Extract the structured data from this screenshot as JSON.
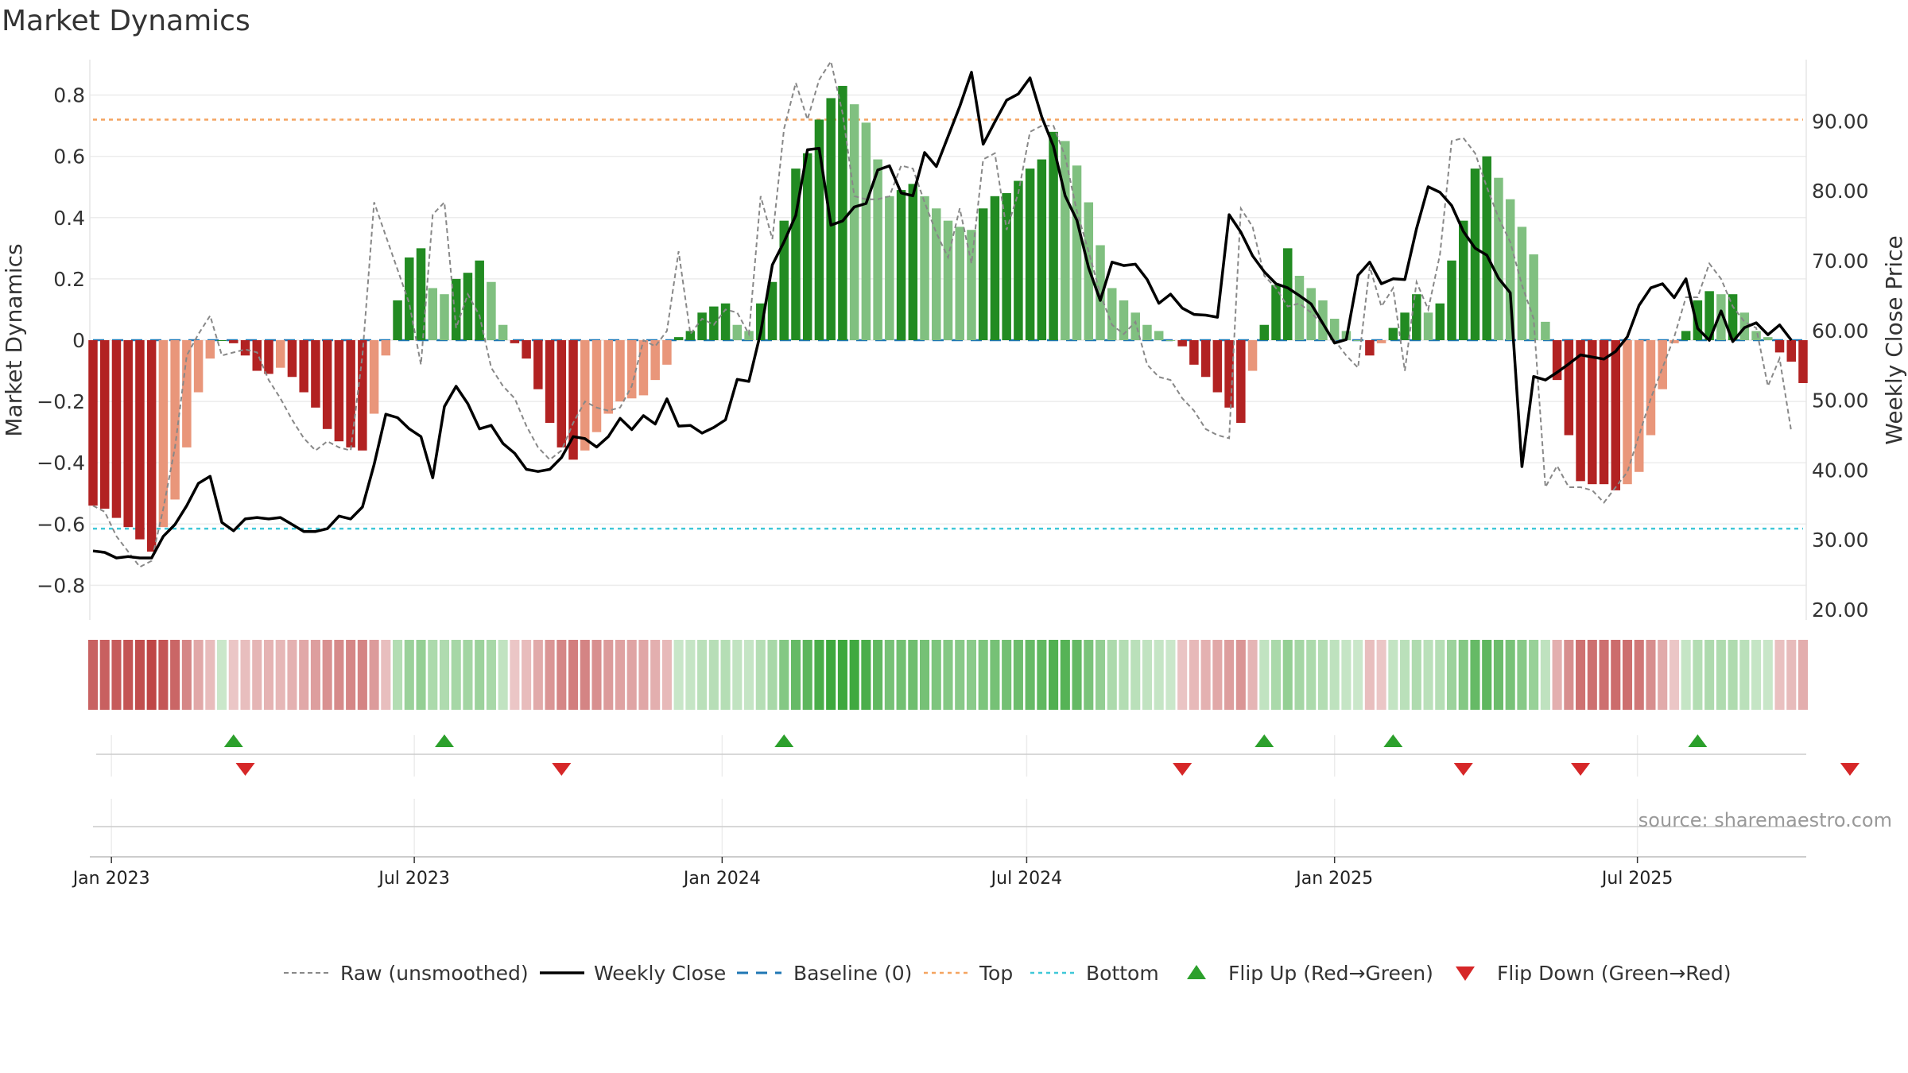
{
  "chart_data": {
    "type": "bar",
    "title": "Market Dynamics",
    "ylabel_left": "Market Dynamics",
    "ylabel_right": "Weekly Close Price",
    "ylim_left": [
      -0.9,
      0.9
    ],
    "ylim_right": [
      17.0,
      97.0
    ],
    "yticks_left": [
      "0.8",
      "0.6",
      "0.4",
      "0.2",
      "0",
      "−0.2",
      "−0.4",
      "−0.6",
      "−0.8"
    ],
    "yticks_right": [
      "90.00",
      "80.00",
      "70.00",
      "60.00",
      "50.00",
      "40.00",
      "30.00",
      "20.00"
    ],
    "top_threshold": 0.72,
    "bottom_threshold": -0.615,
    "baseline": 0,
    "start_date": "2022-12-21",
    "x_axis_ticks": [
      "Jan 2023",
      "Jul 2023",
      "Jan 2024",
      "Jul 2024",
      "Jan 2025",
      "Jul 2025"
    ],
    "source": "source: sharemaestro.com",
    "colors": {
      "strong_green": "#228b22",
      "light_green": "#80c080",
      "strong_red": "#b22222",
      "light_red": "#e9967a",
      "raw": "#888888",
      "close": "#000000",
      "baseline": "#1f77b4",
      "top": "#f4a460",
      "bottom": "#40c8d8",
      "flip_up": "#2ca02c",
      "flip_down": "#d62728"
    },
    "smoothed": [
      -0.54,
      -0.55,
      -0.58,
      -0.61,
      -0.65,
      -0.69,
      -0.61,
      -0.52,
      -0.35,
      -0.17,
      -0.06,
      0,
      -0.01,
      -0.05,
      -0.1,
      -0.11,
      -0.09,
      -0.12,
      -0.17,
      -0.22,
      -0.29,
      -0.33,
      -0.35,
      -0.36,
      -0.24,
      -0.05,
      0.13,
      0.27,
      0.3,
      0.17,
      0.15,
      0.2,
      0.22,
      0.26,
      0.19,
      0.05,
      -0.01,
      -0.06,
      -0.16,
      -0.27,
      -0.35,
      -0.39,
      -0.36,
      -0.3,
      -0.24,
      -0.2,
      -0.19,
      -0.18,
      -0.13,
      -0.08,
      0.01,
      0.03,
      0.09,
      0.11,
      0.12,
      0.05,
      0.03,
      0.12,
      0.19,
      0.39,
      0.56,
      0.61,
      0.72,
      0.79,
      0.83,
      0.77,
      0.71,
      0.59,
      0.47,
      0.49,
      0.51,
      0.47,
      0.43,
      0.39,
      0.37,
      0.36,
      0.43,
      0.47,
      0.48,
      0.52,
      0.56,
      0.59,
      0.68,
      0.65,
      0.57,
      0.45,
      0.31,
      0.17,
      0.13,
      0.09,
      0.05,
      0.03,
      0,
      -0.02,
      -0.08,
      -0.12,
      -0.17,
      -0.22,
      -0.27,
      -0.1,
      0.05,
      0.18,
      0.3,
      0.21,
      0.17,
      0.13,
      0.07,
      0.03,
      0,
      -0.05,
      -0.01,
      0.04,
      0.09,
      0.15,
      0.09,
      0.12,
      0.26,
      0.39,
      0.56,
      0.6,
      0.53,
      0.46,
      0.37,
      0.28,
      0.06,
      -0.13,
      -0.31,
      -0.46,
      -0.47,
      -0.47,
      -0.49,
      -0.47,
      -0.43,
      -0.31,
      -0.16,
      -0.01,
      0.03,
      0.13,
      0.16,
      0.15,
      0.15,
      0.09,
      0.03,
      0.01,
      -0.04,
      -0.07,
      -0.14
    ],
    "raw": [
      -0.54,
      -0.56,
      -0.64,
      -0.69,
      -0.74,
      -0.72,
      -0.55,
      -0.35,
      -0.05,
      0.02,
      0.08,
      -0.05,
      -0.04,
      -0.03,
      -0.04,
      -0.13,
      -0.19,
      -0.26,
      -0.32,
      -0.36,
      -0.33,
      -0.35,
      -0.36,
      -0.05,
      0.45,
      0.34,
      0.23,
      0.12,
      -0.08,
      0.41,
      0.45,
      0.04,
      0.15,
      0.08,
      -0.09,
      -0.15,
      -0.19,
      -0.28,
      -0.35,
      -0.39,
      -0.36,
      -0.27,
      -0.2,
      -0.22,
      -0.23,
      -0.22,
      -0.15,
      0,
      -0.02,
      0.03,
      0.29,
      0.02,
      0.07,
      0.05,
      0.1,
      0.09,
      0.02,
      0.47,
      0.33,
      0.69,
      0.84,
      0.72,
      0.85,
      0.91,
      0.74,
      0.47,
      0.46,
      0.46,
      0.47,
      0.57,
      0.56,
      0.45,
      0.35,
      0.27,
      0.43,
      0.25,
      0.59,
      0.61,
      0.36,
      0.48,
      0.68,
      0.7,
      0.7,
      0.6,
      0.42,
      0.29,
      0.15,
      0.05,
      0.02,
      0.06,
      -0.08,
      -0.12,
      -0.13,
      -0.19,
      -0.23,
      -0.29,
      -0.31,
      -0.32,
      0.43,
      0.37,
      0.21,
      0.17,
      0.11,
      0.12,
      0.09,
      0.05,
      0,
      -0.05,
      -0.09,
      0.24,
      0.11,
      0.17,
      -0.1,
      0.19,
      0.1,
      0.28,
      0.65,
      0.66,
      0.61,
      0.5,
      0.4,
      0.32,
      0.18,
      0.07,
      -0.48,
      -0.41,
      -0.48,
      -0.48,
      -0.49,
      -0.53,
      -0.48,
      -0.43,
      -0.31,
      -0.19,
      -0.09,
      0.01,
      0.14,
      0.14,
      0.25,
      0.2,
      0.11,
      0.06,
      0.04,
      -0.15,
      -0.06,
      -0.3
    ],
    "close": [
      28.4,
      28.2,
      27.4,
      27.6,
      27.4,
      27.4,
      30.5,
      32.2,
      34.9,
      38.1,
      39.1,
      32.5,
      31.3,
      33.0,
      33.2,
      33.0,
      33.2,
      32.2,
      31.2,
      31.2,
      31.6,
      33.4,
      33.0,
      34.7,
      40.8,
      48.0,
      47.5,
      45.9,
      44.8,
      38.9,
      49.1,
      52.0,
      49.5,
      45.9,
      46.4,
      43.8,
      42.4,
      40.1,
      39.8,
      40.1,
      41.8,
      44.8,
      44.5,
      43.3,
      44.8,
      47.4,
      45.8,
      47.8,
      46.6,
      50.2,
      46.3,
      46.4,
      45.3,
      46.1,
      47.2,
      53.0,
      52.7,
      59.7,
      69.4,
      72.7,
      76.5,
      85.9,
      86.1,
      75.1,
      75.7,
      77.7,
      78.2,
      83.0,
      83.6,
      79.7,
      79.3,
      85.5,
      83.5,
      87.8,
      92.1,
      97.0,
      86.7,
      89.9,
      93.0,
      93.9,
      96.2,
      90.6,
      86.4,
      79.3,
      75.8,
      69.0,
      64.3,
      69.8,
      69.3,
      69.5,
      67.3,
      63.9,
      65.2,
      63.2,
      62.3,
      62.2,
      61.9,
      76.6,
      74.1,
      70.7,
      68.4,
      66.7,
      66.1,
      65.0,
      63.8,
      61.0,
      58.2,
      58.7,
      67.9,
      69.8,
      66.7,
      67.4,
      67.3,
      74.6,
      80.6,
      79.8,
      77.9,
      74.2,
      71.8,
      70.8,
      67.5,
      65.4,
      40.5,
      53.4,
      52.9,
      54.0,
      55.2,
      56.5,
      56.2,
      55.9,
      57.0,
      59.1,
      63.6,
      66.1,
      66.7,
      64.7,
      67.4,
      60.3,
      58.6,
      62.8,
      58.4,
      60.4,
      61.1,
      59.4,
      60.8,
      58.6
    ],
    "flip_up_weeks": [
      12,
      30,
      59,
      100,
      111,
      137
    ],
    "flip_down_weeks": [
      13,
      40,
      93,
      117,
      127,
      150
    ],
    "legend": [
      "Raw (unsmoothed)",
      "Weekly Close",
      "Baseline (0)",
      "Top",
      "Bottom",
      "Flip Up (Red→Green)",
      "Flip Down (Green→Red)"
    ]
  }
}
